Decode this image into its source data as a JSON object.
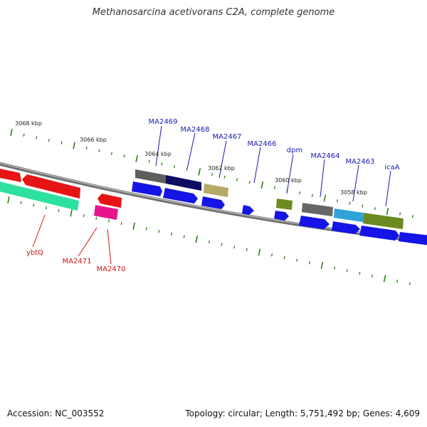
{
  "title": "Methanosarcina acetivorans C2A, complete genome",
  "footer": {
    "accession": "Accession: NC_003552",
    "summary": "Topology: circular; Length: 5,751,492 bp; Genes: 4,609"
  },
  "colors": {
    "backbone": "#8a8a8a",
    "tick": "#2e7d1e",
    "label_blue": "#1a1ab4",
    "label_red": "#d21414"
  },
  "scale_labels": [
    "3068 kbp",
    "3066 kbp",
    "3064 kbp",
    "3062 kbp",
    "3060 kbp",
    "3058 kbp"
  ],
  "gene_labels_top": [
    "MA2469",
    "MA2468",
    "MA2467",
    "MA2466",
    "dpm",
    "MA2464",
    "MA2463",
    "icaA"
  ],
  "gene_labels_bottom": [
    "ybtQ",
    "MA2471",
    "MA2470"
  ]
}
